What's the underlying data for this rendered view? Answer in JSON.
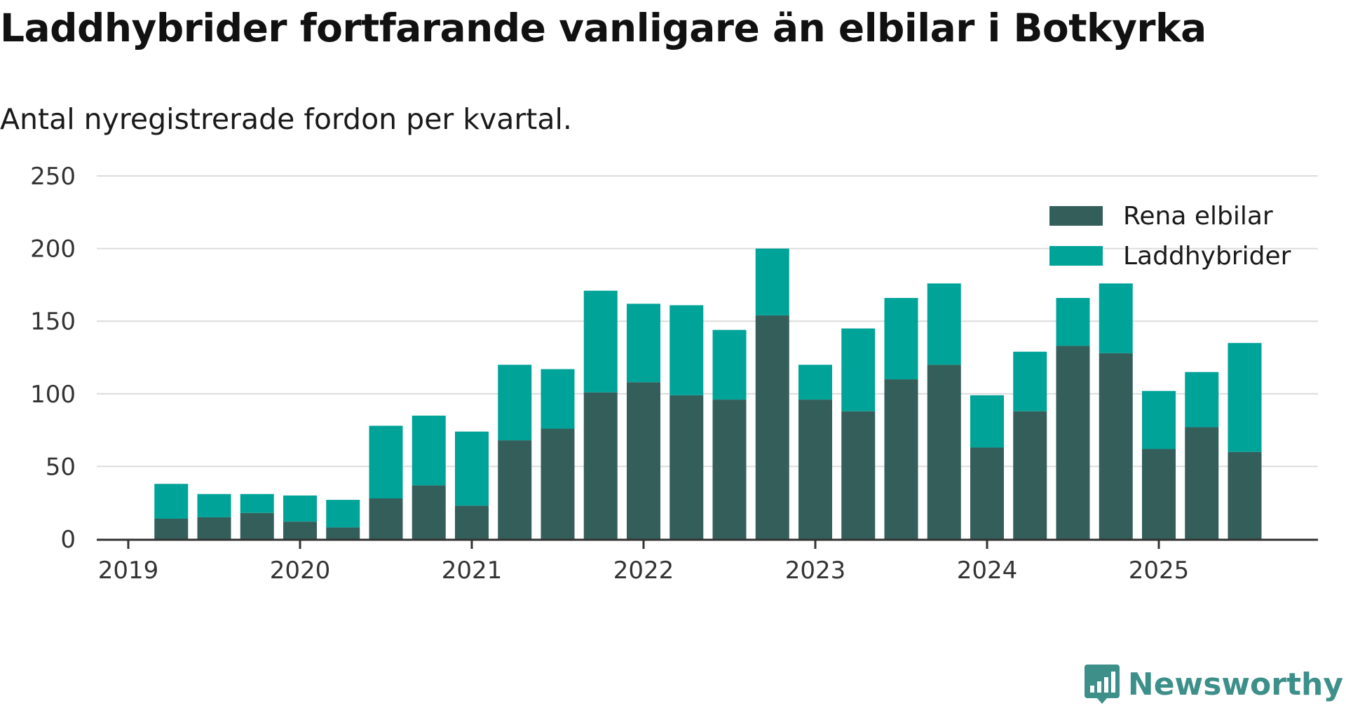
{
  "chart_data": {
    "type": "bar",
    "stacked": true,
    "title": "Laddhybrider fortfarande vanligare än elbilar i Botkyrka",
    "subtitle": "Antal nyregistrerade fordon per kvartal.",
    "xlabel": "",
    "ylabel": "",
    "ylim": [
      0,
      250
    ],
    "yticks": [
      0,
      50,
      100,
      150,
      200,
      250
    ],
    "xtick_labels": [
      "2019",
      "2020",
      "2021",
      "2022",
      "2023",
      "2024",
      "2025"
    ],
    "grid": true,
    "legend_position": "top-right",
    "categories": [
      "2019 Q2",
      "2019 Q3",
      "2019 Q4",
      "2020 Q1",
      "2020 Q2",
      "2020 Q3",
      "2020 Q4",
      "2021 Q1",
      "2021 Q2",
      "2021 Q3",
      "2021 Q4",
      "2022 Q1",
      "2022 Q2",
      "2022 Q3",
      "2022 Q4",
      "2023 Q1",
      "2023 Q2",
      "2023 Q3",
      "2023 Q4",
      "2024 Q1",
      "2024 Q2",
      "2024 Q3",
      "2024 Q4",
      "2025 Q1",
      "2025 Q2",
      "2025 Q3"
    ],
    "series": [
      {
        "name": "Rena elbilar",
        "color": "#345e5a",
        "values": [
          14,
          15,
          18,
          12,
          8,
          28,
          37,
          23,
          68,
          76,
          101,
          108,
          99,
          96,
          154,
          96,
          88,
          110,
          120,
          63,
          88,
          133,
          128,
          62,
          77,
          60
        ]
      },
      {
        "name": "Laddhybrider",
        "color": "#00a398",
        "values": [
          24,
          16,
          13,
          18,
          19,
          50,
          48,
          51,
          52,
          41,
          70,
          54,
          62,
          48,
          46,
          24,
          57,
          56,
          56,
          36,
          41,
          33,
          48,
          40,
          38,
          75
        ]
      }
    ]
  },
  "brand": {
    "name": "Newsworthy",
    "logo_icon": "newsworthy-logo-icon",
    "color": "#3d8f8a"
  }
}
